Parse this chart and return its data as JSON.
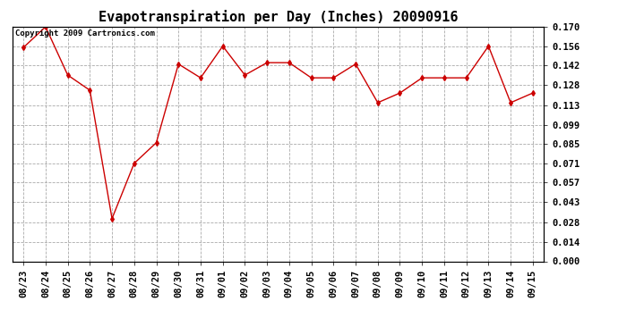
{
  "title": "Evapotranspiration per Day (Inches) 20090916",
  "copyright_text": "Copyright 2009 Cartronics.com",
  "dates": [
    "08/23",
    "08/24",
    "08/25",
    "08/26",
    "08/27",
    "08/28",
    "08/29",
    "08/30",
    "08/31",
    "09/01",
    "09/02",
    "09/03",
    "09/04",
    "09/05",
    "09/06",
    "09/07",
    "09/08",
    "09/09",
    "09/10",
    "09/11",
    "09/12",
    "09/13",
    "09/14",
    "09/15"
  ],
  "values": [
    0.155,
    0.17,
    0.135,
    0.124,
    0.031,
    0.071,
    0.086,
    0.143,
    0.133,
    0.156,
    0.135,
    0.144,
    0.144,
    0.133,
    0.133,
    0.143,
    0.115,
    0.122,
    0.133,
    0.133,
    0.133,
    0.156,
    0.115,
    0.122
  ],
  "line_color": "#cc0000",
  "marker": "d",
  "marker_size": 3,
  "bg_color": "#ffffff",
  "plot_bg_color": "#ffffff",
  "grid_color": "#aaaaaa",
  "title_fontsize": 11,
  "tick_fontsize": 7.5,
  "ylim": [
    0.0,
    0.17
  ],
  "yticks": [
    0.0,
    0.014,
    0.028,
    0.043,
    0.057,
    0.071,
    0.085,
    0.099,
    0.113,
    0.128,
    0.142,
    0.156,
    0.17
  ]
}
